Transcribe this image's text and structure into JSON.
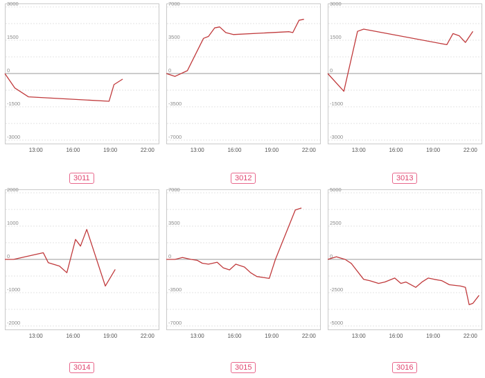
{
  "chart_data": [
    {
      "type": "line",
      "label": "3011",
      "x_ticks": [
        "13:00",
        "16:00",
        "19:00",
        "22:00"
      ],
      "x_range": [
        10.5,
        22.9
      ],
      "y_ticks": [
        3000,
        1500,
        0,
        -1500,
        -3000
      ],
      "ylim": [
        -3000,
        3000
      ],
      "x": [
        10.5,
        11.3,
        12.4,
        18.9,
        19.3,
        20.0
      ],
      "y": [
        0,
        -650,
        -1050,
        -1250,
        -500,
        -250
      ]
    },
    {
      "type": "line",
      "label": "3012",
      "x_ticks": [
        "13:00",
        "16:00",
        "19:00",
        "22:00"
      ],
      "x_range": [
        10.5,
        22.9
      ],
      "y_ticks": [
        7000,
        3500,
        0,
        -3500,
        -7000
      ],
      "ylim": [
        -7000,
        7000
      ],
      "x": [
        10.5,
        11.2,
        12.2,
        13.0,
        13.5,
        13.9,
        14.4,
        14.8,
        15.3,
        15.9,
        20.4,
        20.7,
        21.2,
        21.6
      ],
      "y": [
        0,
        -300,
        300,
        2400,
        3700,
        3900,
        4800,
        4900,
        4300,
        4100,
        4400,
        4300,
        5600,
        5700
      ]
    },
    {
      "type": "line",
      "label": "3013",
      "x_ticks": [
        "13:00",
        "16:00",
        "19:00",
        "22:00"
      ],
      "x_range": [
        10.5,
        22.9
      ],
      "y_ticks": [
        3000,
        1500,
        0,
        -1500,
        -3000
      ],
      "ylim": [
        -3000,
        3000
      ],
      "x": [
        10.5,
        11.8,
        12.9,
        13.4,
        20.1,
        20.6,
        21.1,
        21.6,
        22.2
      ],
      "y": [
        0,
        -800,
        1900,
        2000,
        1300,
        1800,
        1700,
        1400,
        1900
      ]
    },
    {
      "type": "line",
      "label": "3014",
      "x_ticks": [
        "13:00",
        "16:00",
        "19:00",
        "22:00"
      ],
      "x_range": [
        10.5,
        22.9
      ],
      "y_ticks": [
        2000,
        1000,
        0,
        -1000,
        -2000
      ],
      "ylim": [
        -2000,
        2000
      ],
      "x": [
        10.5,
        11.2,
        13.6,
        14.0,
        14.9,
        15.5,
        16.2,
        16.6,
        17.1,
        18.6,
        19.4
      ],
      "y": [
        0,
        0,
        200,
        -100,
        -200,
        -400,
        600,
        400,
        900,
        -800,
        -300
      ]
    },
    {
      "type": "line",
      "label": "3015",
      "x_ticks": [
        "13:00",
        "16:00",
        "19:00",
        "22:00"
      ],
      "x_range": [
        10.5,
        22.9
      ],
      "y_ticks": [
        7000,
        3500,
        0,
        -3500,
        -7000
      ],
      "ylim": [
        -7000,
        7000
      ],
      "x": [
        10.5,
        11.2,
        11.8,
        12.5,
        13.0,
        13.4,
        13.9,
        14.6,
        15.1,
        15.6,
        16.1,
        16.8,
        17.3,
        17.8,
        18.8,
        19.3,
        20.9,
        21.4
      ],
      "y": [
        0,
        0,
        200,
        0,
        -100,
        -400,
        -500,
        -300,
        -900,
        -1100,
        -500,
        -800,
        -1400,
        -1800,
        -2000,
        0,
        5200,
        5400
      ]
    },
    {
      "type": "line",
      "label": "3016",
      "x_ticks": [
        "13:00",
        "16:00",
        "19:00",
        "22:00"
      ],
      "x_range": [
        10.5,
        22.9
      ],
      "y_ticks": [
        5000,
        2500,
        0,
        -2500,
        -5000
      ],
      "ylim": [
        -5000,
        5000
      ],
      "x": [
        10.5,
        11.2,
        11.9,
        12.4,
        13.4,
        13.9,
        14.6,
        15.1,
        15.9,
        16.4,
        16.8,
        17.6,
        18.1,
        18.6,
        19.1,
        19.7,
        20.3,
        21.2,
        21.6,
        21.9,
        22.2,
        22.7
      ],
      "y": [
        0,
        200,
        0,
        -300,
        -1500,
        -1600,
        -1800,
        -1700,
        -1400,
        -1800,
        -1700,
        -2100,
        -1700,
        -1400,
        -1500,
        -1600,
        -1900,
        -2000,
        -2100,
        -3400,
        -3300,
        -2700
      ]
    }
  ]
}
